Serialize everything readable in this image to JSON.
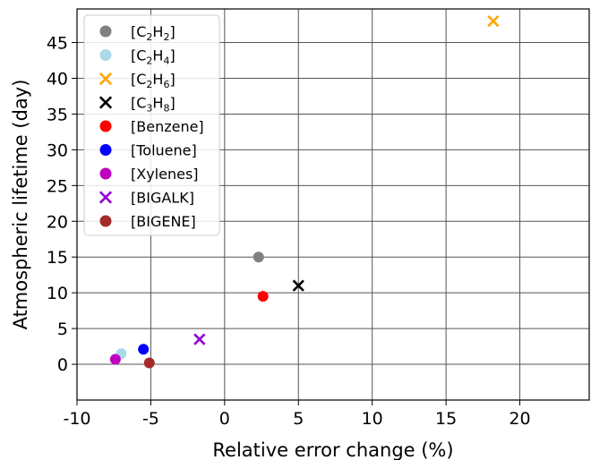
{
  "chart_data": {
    "type": "scatter",
    "title": "",
    "xlabel": "Relative error change (%)",
    "ylabel": "Atmospheric lifetime (day)",
    "xlim": [
      -10,
      24.7
    ],
    "ylim": [
      -5,
      49.7
    ],
    "xticks": [
      -10,
      -5,
      0,
      5,
      10,
      15,
      20
    ],
    "yticks": [
      0,
      5,
      10,
      15,
      20,
      25,
      30,
      35,
      40,
      45
    ],
    "grid": true,
    "legend_position": "top-left",
    "series": [
      {
        "label_main": "[C",
        "sub1": "2",
        "mid": "H",
        "sub2": "2",
        "end": "]",
        "marker": "circle",
        "color": "#808080",
        "points": [
          {
            "x": 2.3,
            "y": 15.0
          }
        ]
      },
      {
        "label_main": "[C",
        "sub1": "2",
        "mid": "H",
        "sub2": "4",
        "end": "]",
        "marker": "circle",
        "color": "#add8e6",
        "points": [
          {
            "x": -7.0,
            "y": 1.5
          }
        ]
      },
      {
        "label_main": "[C",
        "sub1": "2",
        "mid": "H",
        "sub2": "6",
        "end": "]",
        "marker": "x",
        "color": "#ffa500",
        "points": [
          {
            "x": 18.2,
            "y": 48.0
          }
        ]
      },
      {
        "label_main": "[C",
        "sub1": "3",
        "mid": "H",
        "sub2": "8",
        "end": "]",
        "marker": "x",
        "color": "#000000",
        "points": [
          {
            "x": 5.0,
            "y": 11.0
          }
        ]
      },
      {
        "label_main": "[Benzene]",
        "sub1": "",
        "mid": "",
        "sub2": "",
        "end": "",
        "marker": "circle",
        "color": "#ff0000",
        "points": [
          {
            "x": 2.6,
            "y": 9.5
          }
        ]
      },
      {
        "label_main": "[Toluene]",
        "sub1": "",
        "mid": "",
        "sub2": "",
        "end": "",
        "marker": "circle",
        "color": "#0000ff",
        "points": [
          {
            "x": -5.5,
            "y": 2.1
          }
        ]
      },
      {
        "label_main": "[Xylenes]",
        "sub1": "",
        "mid": "",
        "sub2": "",
        "end": "",
        "marker": "circle",
        "color": "#bf00bf",
        "points": [
          {
            "x": -7.4,
            "y": 0.7
          }
        ]
      },
      {
        "label_main": "[BIGALK]",
        "sub1": "",
        "mid": "",
        "sub2": "",
        "end": "",
        "marker": "x",
        "color": "#9400d3",
        "points": [
          {
            "x": -1.7,
            "y": 3.5
          }
        ]
      },
      {
        "label_main": "[BIGENE]",
        "sub1": "",
        "mid": "",
        "sub2": "",
        "end": "",
        "marker": "circle",
        "color": "#a52a2a",
        "points": [
          {
            "x": -5.1,
            "y": 0.2
          }
        ]
      }
    ]
  }
}
